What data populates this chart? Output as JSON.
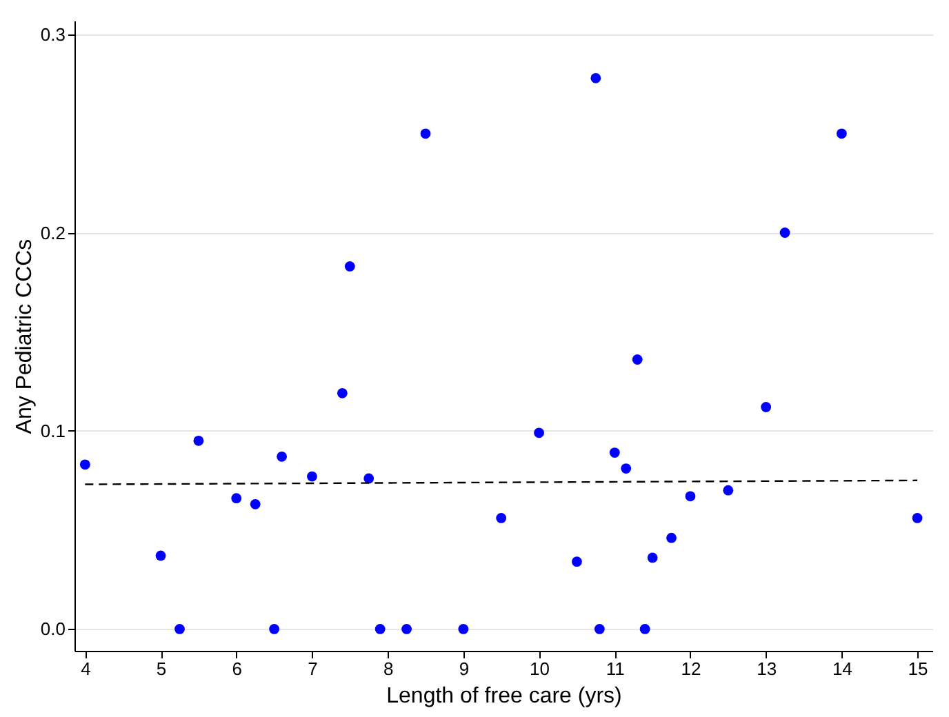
{
  "chart_data": {
    "type": "scatter",
    "xlabel": "Length of free care (yrs)",
    "ylabel": "Any Pediatric CCCs",
    "x": [
      4,
      5,
      5.25,
      5.5,
      6,
      6.25,
      6.5,
      6.6,
      7,
      7.4,
      7.5,
      7.75,
      7.9,
      8.25,
      8.5,
      9,
      9.5,
      10,
      10.5,
      10.75,
      10.8,
      11,
      11.15,
      11.3,
      11.4,
      11.5,
      11.75,
      12,
      12.5,
      13,
      13.25,
      14,
      15
    ],
    "series": [
      {
        "color": "#0000ff",
        "marker": "circle",
        "values": [
          0.083,
          0.037,
          0,
          0.095,
          0.066,
          0.063,
          0,
          0.087,
          0.077,
          0.119,
          0.183,
          0.076,
          0,
          0,
          0.25,
          0,
          0.056,
          0.099,
          0.034,
          0.278,
          0,
          0.089,
          0.081,
          0.136,
          0,
          0.036,
          0.046,
          0.067,
          0.07,
          0.112,
          0.2,
          0.25,
          0.056
        ]
      },
      {
        "type": "line",
        "x": [
          4,
          15
        ],
        "values": [
          0.073,
          0.075
        ],
        "color": "#000000",
        "line_style": "dashed"
      }
    ],
    "grid": "y",
    "legend": false,
    "xlim": [
      3.86,
      15.2
    ],
    "xticks": [
      4,
      5,
      6,
      7,
      8,
      9,
      10,
      11,
      12,
      13,
      14,
      15
    ],
    "ylim": [
      -0.011,
      0.307
    ],
    "yticks": [
      {
        "value": 0,
        "label": "0.0"
      },
      0.1,
      0.2,
      0.3
    ]
  }
}
